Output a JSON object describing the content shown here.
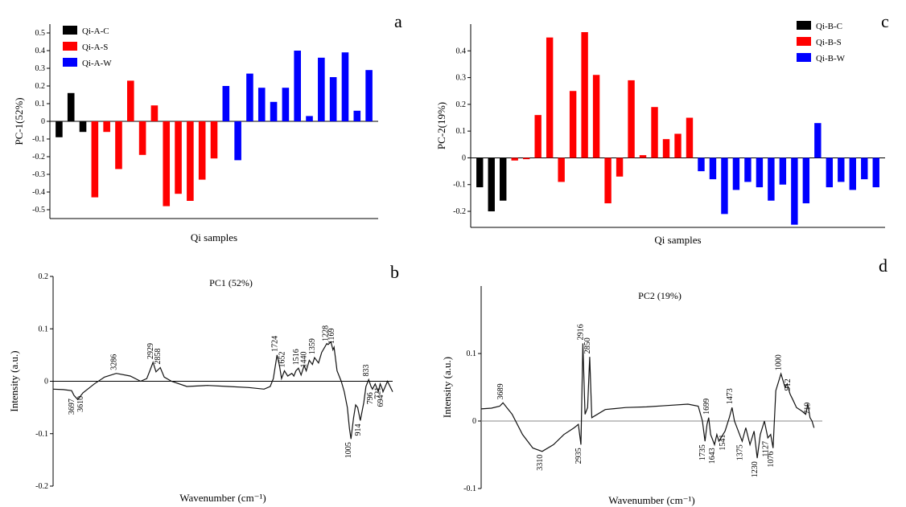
{
  "chart_data": [
    {
      "panel": "a",
      "type": "bar",
      "xlabel": "Qi samples",
      "ylabel": "PC-1(52%)",
      "ylim": [
        -0.55,
        0.55
      ],
      "yticks": [
        0.5,
        0.4,
        0.3,
        0.2,
        0.1,
        0,
        -0.1,
        -0.2,
        -0.3,
        -0.4,
        -0.5
      ],
      "legend_position": "top-left",
      "series": [
        {
          "name": "Qi-A-C",
          "color": "#000000",
          "values": [
            -0.09,
            0.16,
            -0.06
          ]
        },
        {
          "name": "Qi-A-S",
          "color": "#ff0000",
          "values": [
            -0.43,
            -0.06,
            -0.27,
            0.23,
            -0.19,
            0.09,
            -0.48,
            -0.41,
            -0.45,
            -0.33,
            -0.21
          ]
        },
        {
          "name": "Qi-A-W",
          "color": "#0000ff",
          "values": [
            0.2,
            -0.22,
            0.27,
            0.19,
            0.11,
            0.19,
            0.4,
            0.03,
            0.36,
            0.25,
            0.39,
            0.06,
            0.29
          ]
        }
      ]
    },
    {
      "panel": "c",
      "type": "bar",
      "xlabel": "Qi samples",
      "ylabel": "PC-2(19%)",
      "ylim": [
        -0.26,
        0.5
      ],
      "yticks": [
        0.4,
        0.3,
        0.2,
        0.1,
        0,
        -0.1,
        -0.2
      ],
      "ytick_labels": [
        "0.4",
        "0.3",
        "0.2",
        "0.1",
        "0",
        "-0.1",
        "-0.2"
      ],
      "legend_position": "top-right",
      "series": [
        {
          "name": "Qi-B-C",
          "color": "#000000",
          "values": [
            -0.11,
            -0.2,
            -0.16
          ]
        },
        {
          "name": "Qi-B-S",
          "color": "#ff0000",
          "values": [
            -0.01,
            -0.005,
            0.16,
            0.45,
            -0.09,
            0.25,
            0.47,
            0.31,
            -0.17,
            -0.07,
            0.29,
            0.01,
            0.19,
            0.07,
            0.09,
            0.15
          ]
        },
        {
          "name": "Qi-B-W",
          "color": "#0000ff",
          "values": [
            -0.05,
            -0.08,
            -0.21,
            -0.12,
            -0.09,
            -0.11,
            -0.16,
            -0.1,
            -0.25,
            -0.17,
            0.13,
            -0.11,
            -0.09,
            -0.12,
            -0.08,
            -0.11
          ]
        }
      ]
    },
    {
      "panel": "b",
      "type": "line",
      "title": "PC1 (52%)",
      "xlabel": "Wavenumber (cm⁻¹)",
      "ylabel": "Intensity (a.u.)",
      "xlim": [
        3900,
        600
      ],
      "ylim": [
        -0.2,
        0.2
      ],
      "yticks": [
        0.2,
        0.1,
        0,
        -0.1,
        -0.2
      ],
      "ytick_labels": [
        "0.2",
        "0.1",
        "0",
        "-0.1",
        "-0.2"
      ],
      "x": [
        3900,
        3800,
        3720,
        3697,
        3660,
        3610,
        3500,
        3400,
        3286,
        3150,
        3050,
        2990,
        2960,
        2929,
        2900,
        2858,
        2820,
        2750,
        2600,
        2400,
        2200,
        2000,
        1850,
        1790,
        1760,
        1724,
        1700,
        1680,
        1652,
        1620,
        1580,
        1560,
        1540,
        1516,
        1490,
        1460,
        1440,
        1410,
        1380,
        1359,
        1320,
        1290,
        1260,
        1240,
        1228,
        1200,
        1180,
        1169,
        1140,
        1100,
        1070,
        1040,
        1020,
        1005,
        980,
        960,
        940,
        914,
        880,
        860,
        833,
        810,
        796,
        770,
        740,
        721,
        700,
        694,
        650,
        600
      ],
      "y": [
        -0.015,
        -0.016,
        -0.018,
        -0.027,
        -0.035,
        -0.022,
        -0.005,
        0.008,
        0.015,
        0.01,
        0.0,
        0.005,
        0.02,
        0.036,
        0.018,
        0.026,
        0.008,
        0.0,
        -0.01,
        -0.008,
        -0.01,
        -0.012,
        -0.015,
        -0.01,
        0.005,
        0.05,
        0.03,
        0.005,
        0.02,
        0.01,
        0.015,
        0.01,
        0.02,
        0.025,
        0.012,
        0.03,
        0.02,
        0.04,
        0.032,
        0.045,
        0.035,
        0.055,
        0.065,
        0.072,
        0.07,
        0.075,
        0.06,
        0.065,
        0.02,
        0.0,
        -0.02,
        -0.05,
        -0.09,
        -0.11,
        -0.07,
        -0.045,
        -0.05,
        -0.075,
        -0.04,
        -0.01,
        0.003,
        -0.01,
        -0.015,
        -0.005,
        -0.02,
        -0.005,
        -0.015,
        -0.02,
        0.0,
        -0.02
      ],
      "annotations": [
        {
          "label": "3697",
          "x": 3697
        },
        {
          "label": "3610",
          "x": 3610
        },
        {
          "label": "3286",
          "x": 3286
        },
        {
          "label": "2929",
          "x": 2929
        },
        {
          "label": "2858",
          "x": 2858
        },
        {
          "label": "1724",
          "x": 1724
        },
        {
          "label": "1652",
          "x": 1652
        },
        {
          "label": "1516",
          "x": 1516
        },
        {
          "label": "1440",
          "x": 1440
        },
        {
          "label": "1359",
          "x": 1359
        },
        {
          "label": "1228",
          "x": 1228
        },
        {
          "label": "1169",
          "x": 1169
        },
        {
          "label": "1005",
          "x": 1005
        },
        {
          "label": "914",
          "x": 914
        },
        {
          "label": "833",
          "x": 833
        },
        {
          "label": "796",
          "x": 796
        },
        {
          "label": "721",
          "x": 721
        },
        {
          "label": "694",
          "x": 694
        }
      ]
    },
    {
      "panel": "d",
      "type": "line",
      "title": "PC2 (19%)",
      "xlabel": "Wavenumber (cm⁻¹)",
      "ylabel": "Intensity (a.u.)",
      "xlim": [
        3900,
        600
      ],
      "ylim": [
        -0.1,
        0.2
      ],
      "yticks": [
        0.1,
        0,
        -0.1
      ],
      "ytick_labels": [
        "0.1",
        "0",
        "-0.1"
      ],
      "x": [
        3900,
        3800,
        3720,
        3689,
        3600,
        3500,
        3400,
        3310,
        3200,
        3100,
        3000,
        2960,
        2935,
        2916,
        2895,
        2870,
        2850,
        2830,
        2700,
        2500,
        2300,
        2100,
        1900,
        1800,
        1760,
        1735,
        1715,
        1699,
        1680,
        1643,
        1620,
        1600,
        1541,
        1500,
        1473,
        1450,
        1400,
        1375,
        1340,
        1300,
        1260,
        1230,
        1200,
        1160,
        1127,
        1100,
        1076,
        1050,
        1000,
        960,
        940,
        912,
        880,
        850,
        800,
        760,
        740,
        719,
        700,
        680
      ],
      "y": [
        0.018,
        0.019,
        0.022,
        0.027,
        0.01,
        -0.02,
        -0.04,
        -0.045,
        -0.035,
        -0.02,
        -0.01,
        -0.005,
        -0.035,
        0.115,
        0.01,
        0.02,
        0.095,
        0.005,
        0.017,
        0.02,
        0.021,
        0.023,
        0.025,
        0.022,
        0.0,
        -0.03,
        -0.005,
        0.005,
        -0.02,
        -0.035,
        -0.02,
        -0.03,
        -0.015,
        0.005,
        0.02,
        0.0,
        -0.02,
        -0.03,
        -0.01,
        -0.035,
        -0.015,
        -0.055,
        -0.02,
        0.0,
        -0.025,
        -0.02,
        -0.04,
        0.045,
        0.07,
        0.05,
        0.055,
        0.04,
        0.03,
        0.02,
        0.015,
        0.01,
        0.025,
        0.005,
        0.0,
        -0.01
      ],
      "annotations": [
        {
          "label": "3689",
          "x": 3689
        },
        {
          "label": "3310",
          "x": 3310
        },
        {
          "label": "2935",
          "x": 2935
        },
        {
          "label": "2916",
          "x": 2916
        },
        {
          "label": "2850",
          "x": 2850
        },
        {
          "label": "1735",
          "x": 1735
        },
        {
          "label": "1699",
          "x": 1699
        },
        {
          "label": "1643",
          "x": 1643
        },
        {
          "label": "1541",
          "x": 1541
        },
        {
          "label": "1473",
          "x": 1473
        },
        {
          "label": "1375",
          "x": 1375
        },
        {
          "label": "1230",
          "x": 1230
        },
        {
          "label": "1127",
          "x": 1127
        },
        {
          "label": "1076",
          "x": 1076
        },
        {
          "label": "1000",
          "x": 1000
        },
        {
          "label": "912",
          "x": 912
        },
        {
          "label": "719",
          "x": 719
        }
      ]
    }
  ]
}
